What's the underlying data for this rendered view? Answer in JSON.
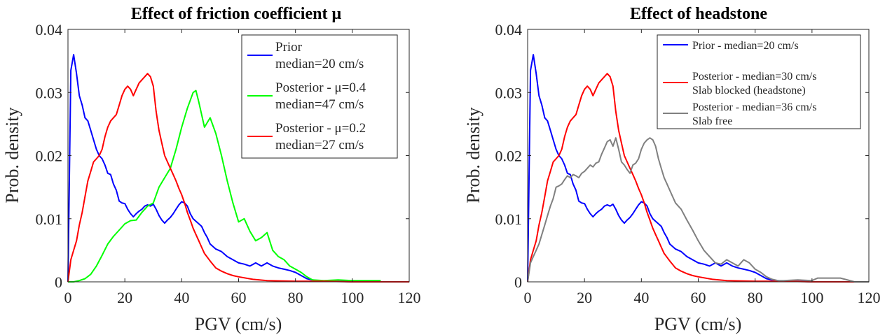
{
  "chart_data": [
    {
      "type": "line",
      "title": "Effect of friction coefficient μ",
      "xlabel": "PGV (cm/s)",
      "ylabel": "Prob. density",
      "xlim": [
        0,
        120
      ],
      "ylim": [
        0,
        0.04
      ],
      "xticks": [
        "0",
        "20",
        "40",
        "60",
        "80",
        "100",
        "120"
      ],
      "yticks": [
        "0",
        "0.01",
        "0.02",
        "0.03",
        "0.04"
      ],
      "grid": false,
      "legend_position": "top-right",
      "series": [
        {
          "name": "Prior",
          "name_line2": "median=20 cm/s",
          "color": "#0000ff",
          "x": [
            0,
            1,
            2,
            3,
            4,
            5,
            6,
            7,
            8,
            9,
            10,
            11,
            12,
            13,
            14,
            15,
            16,
            17,
            18,
            19,
            20,
            21,
            22,
            23,
            24,
            25,
            26,
            27,
            28,
            29,
            30,
            31,
            32,
            33,
            34,
            35,
            36,
            37,
            38,
            39,
            40,
            41,
            42,
            43,
            44,
            45,
            46,
            47,
            48,
            49,
            50,
            52,
            54,
            56,
            58,
            60,
            62,
            64,
            66,
            68,
            70,
            72,
            74,
            76,
            78,
            80,
            82,
            84,
            86,
            88,
            90,
            95,
            100,
            110
          ],
          "y": [
            0,
            0.0335,
            0.036,
            0.033,
            0.0295,
            0.028,
            0.026,
            0.0255,
            0.024,
            0.0225,
            0.021,
            0.02,
            0.0195,
            0.0185,
            0.0172,
            0.017,
            0.0155,
            0.0145,
            0.0128,
            0.0125,
            0.0124,
            0.0115,
            0.0108,
            0.0103,
            0.0108,
            0.0112,
            0.0115,
            0.012,
            0.0122,
            0.012,
            0.0123,
            0.0115,
            0.0105,
            0.0098,
            0.0093,
            0.0098,
            0.0102,
            0.0108,
            0.0115,
            0.0122,
            0.0127,
            0.0125,
            0.012,
            0.0108,
            0.01,
            0.0096,
            0.0092,
            0.0088,
            0.0078,
            0.007,
            0.006,
            0.0052,
            0.0048,
            0.004,
            0.0035,
            0.003,
            0.0028,
            0.0025,
            0.003,
            0.0025,
            0.003,
            0.0025,
            0.0022,
            0.002,
            0.0018,
            0.0015,
            0.001,
            0.0005,
            0.0003,
            0.0002,
            0.0001,
            0.0001,
            0,
            0
          ]
        },
        {
          "name": "Posterior - μ=0.4",
          "name_line2": "median=47 cm/s",
          "color": "#00ff00",
          "x": [
            0,
            2,
            4,
            6,
            8,
            10,
            12,
            14,
            16,
            18,
            20,
            22,
            24,
            26,
            28,
            30,
            32,
            34,
            36,
            38,
            40,
            42,
            44,
            45,
            46,
            48,
            50,
            52,
            54,
            56,
            58,
            60,
            62,
            64,
            66,
            68,
            70,
            72,
            74,
            76,
            78,
            80,
            82,
            84,
            86,
            90,
            95,
            100,
            105,
            110
          ],
          "y": [
            0,
            0,
            0.0002,
            0.0005,
            0.0012,
            0.0025,
            0.0042,
            0.006,
            0.0072,
            0.0082,
            0.0092,
            0.0097,
            0.0098,
            0.011,
            0.012,
            0.0125,
            0.015,
            0.0165,
            0.018,
            0.021,
            0.0245,
            0.0275,
            0.03,
            0.0303,
            0.0285,
            0.0245,
            0.026,
            0.0235,
            0.02,
            0.016,
            0.0125,
            0.0095,
            0.01,
            0.008,
            0.0065,
            0.007,
            0.0078,
            0.005,
            0.004,
            0.0035,
            0.0025,
            0.002,
            0.0015,
            0.0008,
            0.0003,
            0.0002,
            0.0003,
            0.0002,
            0.0002,
            0.0002
          ]
        },
        {
          "name": "Posterior - μ=0.2",
          "name_line2": "median=27 cm/s",
          "color": "#ff0000",
          "x": [
            0,
            1,
            2,
            3,
            4,
            5,
            6,
            7,
            8,
            9,
            10,
            11,
            12,
            13,
            14,
            15,
            16,
            17,
            18,
            19,
            20,
            21,
            22,
            23,
            24,
            25,
            26,
            27,
            28,
            29,
            30,
            31,
            32,
            33,
            34,
            35,
            36,
            37,
            38,
            39,
            40,
            41,
            42,
            43,
            44,
            45,
            46,
            47,
            48,
            50,
            52,
            54,
            56,
            58,
            60,
            65,
            70,
            80,
            90,
            100,
            110,
            120
          ],
          "y": [
            0,
            0.0035,
            0.005,
            0.0065,
            0.009,
            0.011,
            0.0135,
            0.016,
            0.0175,
            0.019,
            0.0195,
            0.02,
            0.021,
            0.023,
            0.0245,
            0.0255,
            0.026,
            0.0265,
            0.028,
            0.0295,
            0.0305,
            0.031,
            0.0305,
            0.0295,
            0.0305,
            0.0315,
            0.032,
            0.0325,
            0.033,
            0.0325,
            0.031,
            0.027,
            0.024,
            0.022,
            0.02,
            0.019,
            0.018,
            0.017,
            0.016,
            0.0148,
            0.0138,
            0.0125,
            0.011,
            0.0098,
            0.0085,
            0.0075,
            0.0065,
            0.0055,
            0.0045,
            0.0033,
            0.0022,
            0.0017,
            0.0013,
            0.001,
            0.0008,
            0.0004,
            0.0002,
            0.0001,
            0.0001,
            0,
            0,
            0
          ]
        }
      ]
    },
    {
      "type": "line",
      "title": "Effect of headstone",
      "xlabel": "PGV (cm/s)",
      "ylabel": "Prob. density",
      "xlim": [
        0,
        120
      ],
      "ylim": [
        0,
        0.04
      ],
      "xticks": [
        "0",
        "20",
        "40",
        "60",
        "80",
        "100",
        "120"
      ],
      "yticks": [
        "0",
        "0.01",
        "0.02",
        "0.03",
        "0.04"
      ],
      "grid": false,
      "legend_position": "top-right",
      "series": [
        {
          "name": "Prior - median=20 cm/s",
          "name_line2": "",
          "color": "#0000ff",
          "x": [
            0,
            1,
            2,
            3,
            4,
            5,
            6,
            7,
            8,
            9,
            10,
            11,
            12,
            13,
            14,
            15,
            16,
            17,
            18,
            19,
            20,
            21,
            22,
            23,
            24,
            25,
            26,
            27,
            28,
            29,
            30,
            31,
            32,
            33,
            34,
            35,
            36,
            37,
            38,
            39,
            40,
            41,
            42,
            43,
            44,
            45,
            46,
            47,
            48,
            49,
            50,
            52,
            54,
            56,
            58,
            60,
            62,
            64,
            66,
            68,
            70,
            72,
            74,
            76,
            78,
            80,
            82,
            84,
            86,
            88,
            90,
            95,
            100,
            110
          ],
          "y": [
            0,
            0.0335,
            0.036,
            0.033,
            0.0295,
            0.028,
            0.026,
            0.0255,
            0.024,
            0.0225,
            0.021,
            0.02,
            0.0195,
            0.0185,
            0.0172,
            0.017,
            0.0155,
            0.0145,
            0.0128,
            0.0125,
            0.0124,
            0.0115,
            0.0108,
            0.0103,
            0.0108,
            0.0112,
            0.0115,
            0.012,
            0.0122,
            0.012,
            0.0123,
            0.0115,
            0.0105,
            0.0098,
            0.0093,
            0.0098,
            0.0102,
            0.0108,
            0.0115,
            0.0122,
            0.0127,
            0.0125,
            0.012,
            0.0108,
            0.01,
            0.0096,
            0.0092,
            0.0088,
            0.0078,
            0.007,
            0.006,
            0.0052,
            0.0048,
            0.004,
            0.0035,
            0.003,
            0.0028,
            0.0025,
            0.003,
            0.0025,
            0.003,
            0.0025,
            0.0022,
            0.002,
            0.0018,
            0.0015,
            0.001,
            0.0005,
            0.0003,
            0.0002,
            0.0001,
            0.0001,
            0,
            0
          ]
        },
        {
          "name": "Posterior - median=30 cm/s",
          "name_line2": "Slab blocked (headstone)",
          "color": "#ff0000",
          "x": [
            0,
            1,
            2,
            3,
            4,
            5,
            6,
            7,
            8,
            9,
            10,
            11,
            12,
            13,
            14,
            15,
            16,
            17,
            18,
            19,
            20,
            21,
            22,
            23,
            24,
            25,
            26,
            27,
            28,
            29,
            30,
            31,
            32,
            33,
            34,
            35,
            36,
            37,
            38,
            39,
            40,
            41,
            42,
            43,
            44,
            45,
            46,
            47,
            48,
            50,
            52,
            54,
            56,
            58,
            60,
            65,
            70,
            80,
            90,
            100,
            110,
            120
          ],
          "y": [
            0,
            0.0035,
            0.005,
            0.0065,
            0.009,
            0.011,
            0.0135,
            0.016,
            0.0175,
            0.019,
            0.0195,
            0.02,
            0.021,
            0.023,
            0.0245,
            0.0255,
            0.026,
            0.0265,
            0.028,
            0.0295,
            0.0305,
            0.031,
            0.0305,
            0.0295,
            0.0305,
            0.0315,
            0.032,
            0.0325,
            0.033,
            0.0325,
            0.031,
            0.027,
            0.024,
            0.022,
            0.02,
            0.019,
            0.018,
            0.017,
            0.016,
            0.0148,
            0.0138,
            0.0125,
            0.011,
            0.0098,
            0.0085,
            0.0075,
            0.0065,
            0.0055,
            0.0045,
            0.0033,
            0.0022,
            0.0017,
            0.0013,
            0.001,
            0.0008,
            0.0004,
            0.0002,
            0.0001,
            0.0001,
            0,
            0,
            0
          ]
        },
        {
          "name": "Posterior - median=36 cm/s",
          "name_line2": "Slab free",
          "color": "#808080",
          "x": [
            0,
            1,
            2,
            3,
            4,
            5,
            6,
            7,
            8,
            9,
            10,
            11,
            12,
            13,
            14,
            15,
            16,
            17,
            18,
            19,
            20,
            21,
            22,
            23,
            24,
            25,
            26,
            27,
            28,
            29,
            30,
            31,
            32,
            33,
            34,
            35,
            36,
            37,
            38,
            39,
            40,
            41,
            42,
            43,
            44,
            45,
            46,
            47,
            48,
            49,
            50,
            52,
            54,
            56,
            58,
            60,
            62,
            64,
            66,
            68,
            70,
            72,
            74,
            76,
            78,
            80,
            82,
            84,
            86,
            88,
            90,
            95,
            100,
            102,
            105,
            108,
            110,
            115,
            120
          ],
          "y": [
            0,
            0.003,
            0.004,
            0.005,
            0.006,
            0.0075,
            0.009,
            0.0105,
            0.012,
            0.0132,
            0.015,
            0.0152,
            0.0155,
            0.0162,
            0.0168,
            0.0165,
            0.017,
            0.0168,
            0.0165,
            0.0172,
            0.0175,
            0.018,
            0.0185,
            0.0182,
            0.0188,
            0.019,
            0.0202,
            0.0212,
            0.0222,
            0.0225,
            0.0215,
            0.0228,
            0.021,
            0.019,
            0.0185,
            0.0178,
            0.0172,
            0.0185,
            0.0188,
            0.0195,
            0.021,
            0.022,
            0.0225,
            0.0228,
            0.0225,
            0.0215,
            0.0195,
            0.018,
            0.0165,
            0.0155,
            0.0145,
            0.0125,
            0.0115,
            0.0098,
            0.0082,
            0.0065,
            0.005,
            0.004,
            0.003,
            0.0028,
            0.0035,
            0.003,
            0.0025,
            0.0035,
            0.003,
            0.002,
            0.0015,
            0.0008,
            0.0004,
            0.0002,
            0.0002,
            0.0003,
            0.0002,
            0.0006,
            0.0006,
            0.0006,
            0.0006,
            0,
            0
          ]
        }
      ]
    }
  ]
}
